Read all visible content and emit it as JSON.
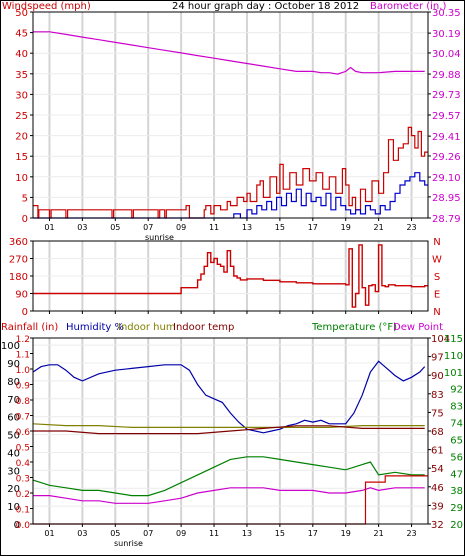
{
  "colors": {
    "wind": "#cc0000",
    "wind_avg": "#0000cc",
    "baro": "#cc00cc",
    "dir": "#cc0000",
    "rain": "#cc0000",
    "humidity": "#0000aa",
    "indoor_hum": "#808000",
    "indoor_temp": "#800000",
    "temperature": "#008000",
    "dew_point": "#cc00cc",
    "grid": "#d4d4d4",
    "axis": "#000000"
  },
  "chart_data": [
    {
      "type": "line",
      "title": "24 hour graph day : October 18 2012",
      "ylabel_left": "Windspeed (mph)",
      "ylabel_right": "Barometer (in.)",
      "x_tick_labels": [
        "01",
        "03",
        "05",
        "07",
        "09",
        "11",
        "13",
        "15",
        "17",
        "19",
        "21",
        "23"
      ],
      "x_tick_hours": [
        1,
        3,
        5,
        7,
        9,
        11,
        13,
        15,
        17,
        19,
        21,
        23
      ],
      "xlim": [
        0,
        24
      ],
      "extra_labels": [
        "sunrise"
      ],
      "left_ticks": [
        "0",
        "5",
        "10",
        "15",
        "20",
        "25",
        "30",
        "35",
        "40",
        "45",
        "50"
      ],
      "left_tick_values": [
        0,
        5,
        10,
        15,
        20,
        25,
        30,
        35,
        40,
        45,
        50
      ],
      "ylim_left": [
        0,
        50
      ],
      "right_ticks": [
        "28.79",
        "28.95",
        "29.10",
        "29.26",
        "29.41",
        "29.57",
        "29.73",
        "29.88",
        "30.04",
        "30.19",
        "30.35"
      ],
      "right_tick_values": [
        28.79,
        28.95,
        29.1,
        29.26,
        29.41,
        29.57,
        29.73,
        29.88,
        30.04,
        30.19,
        30.35
      ],
      "ylim_right": [
        28.79,
        30.35
      ],
      "series": [
        {
          "name": "Windspeed",
          "axis": "left",
          "step": true,
          "x": [
            0.0,
            0.3,
            0.35,
            1.0,
            1.1,
            2.0,
            2.1,
            4.8,
            4.9,
            6.0,
            6.1,
            7.6,
            7.7,
            8.0,
            8.1,
            9.3,
            9.5,
            10.4,
            10.5,
            10.8,
            11.0,
            11.4,
            11.8,
            12.0,
            12.4,
            12.8,
            13.0,
            13.2,
            13.6,
            13.8,
            14.0,
            14.4,
            14.8,
            15.0,
            15.2,
            15.6,
            16.0,
            16.4,
            16.8,
            17.2,
            17.6,
            18.0,
            18.4,
            18.8,
            19.0,
            19.2,
            19.4,
            19.6,
            19.9,
            20.2,
            20.6,
            21.0,
            21.3,
            21.6,
            21.9,
            22.2,
            22.5,
            22.8,
            23.0,
            23.2,
            23.4,
            23.6,
            23.8
          ],
          "y": [
            3,
            0,
            2,
            0,
            2,
            0,
            2,
            0,
            2,
            0,
            2,
            0,
            2,
            0,
            2,
            3,
            0,
            2,
            3,
            1,
            3,
            2,
            4,
            3,
            5,
            4,
            6,
            4,
            8,
            9,
            5,
            10,
            6,
            13,
            7,
            11,
            8,
            12,
            9,
            11,
            7,
            10,
            6,
            12,
            8,
            3,
            5,
            2,
            7,
            4,
            9,
            6,
            11,
            19,
            14,
            17,
            18,
            22,
            20,
            17,
            21,
            15,
            16
          ]
        },
        {
          "name": "Average wind",
          "axis": "left",
          "step": true,
          "x": [
            0.0,
            12.2,
            12.6,
            13.0,
            13.3,
            13.6,
            13.9,
            14.2,
            14.5,
            14.8,
            15.1,
            15.4,
            15.7,
            16.0,
            16.3,
            16.6,
            16.9,
            17.2,
            17.5,
            17.8,
            18.1,
            18.4,
            18.7,
            19.0,
            19.3,
            19.6,
            19.9,
            20.2,
            20.5,
            20.8,
            21.1,
            21.4,
            21.7,
            22.0,
            22.3,
            22.6,
            22.9,
            23.2,
            23.5,
            23.8
          ],
          "y": [
            0,
            1,
            0,
            2,
            1,
            3,
            2,
            4,
            2,
            5,
            3,
            6,
            4,
            7,
            3,
            6,
            4,
            5,
            3,
            6,
            2,
            5,
            3,
            2,
            1,
            2,
            1,
            3,
            2,
            1,
            3,
            2,
            4,
            6,
            8,
            9,
            10,
            11,
            9,
            8
          ]
        },
        {
          "name": "Barometer",
          "axis": "right",
          "x": [
            0,
            1,
            2,
            3,
            4,
            5,
            6,
            7,
            8,
            9,
            10,
            11,
            12,
            13,
            14,
            15,
            16,
            17,
            17.5,
            18,
            18.5,
            19,
            19.3,
            19.6,
            20,
            20.5,
            21,
            22,
            23,
            23.8
          ],
          "y": [
            30.2,
            30.2,
            30.18,
            30.16,
            30.14,
            30.12,
            30.1,
            30.08,
            30.06,
            30.04,
            30.02,
            30.0,
            29.98,
            29.96,
            29.94,
            29.92,
            29.9,
            29.9,
            29.89,
            29.89,
            29.88,
            29.9,
            29.93,
            29.9,
            29.89,
            29.89,
            29.89,
            29.9,
            29.9,
            29.9
          ]
        }
      ]
    },
    {
      "type": "line",
      "ylabel": "Wind direction",
      "left_ticks": [
        "0",
        "90",
        "180",
        "270",
        "360"
      ],
      "left_tick_values": [
        0,
        90,
        180,
        270,
        360
      ],
      "ylim": [
        0,
        360
      ],
      "right_ticks": [
        "N",
        "E",
        "S",
        "W",
        "N"
      ],
      "right_tick_values": [
        0,
        90,
        180,
        270,
        360
      ],
      "series": [
        {
          "name": "Wind direction",
          "step": true,
          "x": [
            0,
            8.9,
            9.0,
            10.0,
            10.2,
            10.4,
            10.6,
            10.8,
            11.0,
            11.2,
            11.4,
            11.6,
            11.8,
            12.0,
            12.2,
            12.4,
            12.6,
            13,
            14,
            15,
            16,
            17,
            18,
            19,
            19.2,
            19.4,
            19.6,
            19.8,
            20.0,
            20.2,
            20.4,
            20.6,
            20.8,
            21.0,
            21.2,
            21.4,
            21.6,
            22,
            23,
            23.8
          ],
          "y": [
            90,
            90,
            120,
            160,
            190,
            230,
            300,
            250,
            270,
            240,
            230,
            200,
            310,
            230,
            180,
            170,
            160,
            165,
            158,
            150,
            145,
            140,
            140,
            135,
            320,
            20,
            90,
            340,
            120,
            30,
            130,
            135,
            100,
            340,
            130,
            125,
            135,
            130,
            125,
            130
          ]
        }
      ]
    },
    {
      "type": "line",
      "header_labels": [
        "Rainfall (in)",
        "Humidity %",
        "Indoor hum",
        "Indoor temp",
        "Temperature (°F)",
        "Dew Point"
      ],
      "x_tick_labels": [
        "01",
        "03",
        "05",
        "07",
        "09",
        "11",
        "13",
        "15",
        "17",
        "19",
        "21",
        "23"
      ],
      "x_tick_hours": [
        1,
        3,
        5,
        7,
        9,
        11,
        13,
        15,
        17,
        19,
        21,
        23
      ],
      "extra_labels": [
        "sunrise"
      ],
      "rain_ticks": [
        "0.0",
        "0.1",
        "0.2",
        "0.3",
        "0.4",
        "0.5",
        "0.6",
        "0.7",
        "0.8",
        "0.9",
        "1.0",
        "1.1",
        "1.2"
      ],
      "rain_tick_values": [
        0,
        0.1,
        0.2,
        0.3,
        0.4,
        0.5,
        0.6,
        0.7,
        0.8,
        0.9,
        1.0,
        1.1,
        1.2
      ],
      "humidity_ticks": [
        "0",
        "10",
        "20",
        "30",
        "40",
        "50",
        "60",
        "70",
        "80",
        "90",
        "100"
      ],
      "humidity_tick_values": [
        0,
        10,
        20,
        30,
        40,
        50,
        60,
        70,
        80,
        90,
        100
      ],
      "temp_ticks_a": [
        "32",
        "39",
        "46",
        "54",
        "61",
        "68",
        "75",
        "83",
        "90",
        "97",
        "104"
      ],
      "temp_ticks_b": [
        "20",
        "29",
        "38",
        "47",
        "56",
        "65",
        "74",
        "83",
        "92",
        "101",
        "110",
        "115"
      ],
      "temp_ylim": [
        32,
        104
      ],
      "series": [
        {
          "name": "Humidity",
          "axis": "humidity",
          "x": [
            0,
            0.5,
            1,
            1.5,
            2,
            2.5,
            3,
            4,
            5,
            6,
            7,
            8,
            9,
            9.5,
            10,
            10.5,
            11,
            11.5,
            12,
            12.5,
            13,
            13.5,
            14,
            14.5,
            15,
            15.5,
            16,
            16.5,
            17,
            17.5,
            18,
            18.5,
            19,
            19.5,
            20,
            20.5,
            21,
            21.5,
            22,
            22.5,
            23,
            23.5,
            23.8
          ],
          "y": [
            85,
            88,
            89,
            89,
            86,
            82,
            80,
            84,
            86,
            87,
            88,
            89,
            89,
            86,
            78,
            72,
            70,
            68,
            62,
            57,
            53,
            52,
            51,
            52,
            53,
            55,
            56,
            58,
            57,
            58,
            56,
            56,
            56,
            62,
            72,
            85,
            91,
            87,
            83,
            80,
            82,
            85,
            88
          ]
        },
        {
          "name": "Indoor hum",
          "axis": "humidity",
          "x": [
            0,
            2,
            4,
            6,
            8,
            10,
            12,
            14,
            16,
            18,
            20,
            22,
            23.8
          ],
          "y": [
            56,
            55,
            55,
            54,
            54,
            54,
            54,
            54,
            54,
            54,
            55,
            55,
            55
          ]
        },
        {
          "name": "Indoor temp",
          "axis": "temp",
          "x": [
            0,
            2,
            4,
            6,
            8,
            10,
            12,
            14,
            16,
            18,
            20,
            22,
            23.8
          ],
          "y": [
            68,
            68,
            67,
            67,
            67,
            67,
            68,
            69,
            70,
            70,
            69,
            69,
            69
          ]
        },
        {
          "name": "Temperature",
          "axis": "temp",
          "x": [
            0,
            1,
            2,
            3,
            4,
            5,
            6,
            7,
            8,
            9,
            10,
            11,
            12,
            13,
            14,
            15,
            16,
            17,
            18,
            19,
            20,
            20.5,
            21,
            22,
            23,
            23.8
          ],
          "y": [
            49,
            47,
            46,
            45,
            45,
            44,
            43,
            43,
            45,
            48,
            51,
            54,
            57,
            58,
            58,
            57,
            56,
            55,
            54,
            53,
            55,
            56,
            51,
            52,
            51,
            51
          ]
        },
        {
          "name": "Dew Point",
          "axis": "temp",
          "x": [
            0,
            1,
            2,
            3,
            4,
            5,
            6,
            7,
            8,
            9,
            10,
            11,
            12,
            13,
            14,
            15,
            16,
            17,
            18,
            19,
            20,
            20.5,
            21,
            22,
            23,
            23.8
          ],
          "y": [
            43,
            43,
            42,
            41,
            41,
            40,
            40,
            40,
            41,
            42,
            44,
            45,
            46,
            46,
            46,
            45,
            45,
            45,
            44,
            44,
            45,
            46,
            45,
            46,
            46,
            46
          ]
        },
        {
          "name": "Rainfall",
          "axis": "rain",
          "step": true,
          "x": [
            0,
            20.0,
            20.2,
            21.2,
            21.4,
            23.8
          ],
          "y": [
            0,
            0,
            0.27,
            0.27,
            0.31,
            0.31
          ]
        }
      ]
    }
  ]
}
